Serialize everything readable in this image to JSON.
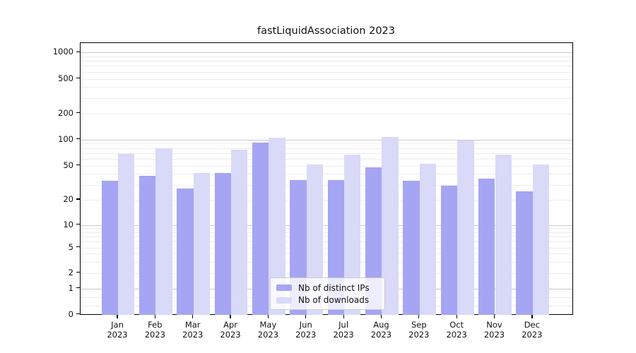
{
  "title": "fastLiquidAssociation 2023",
  "chart_data": {
    "type": "bar",
    "title": "fastLiquidAssociation 2023",
    "x_months": [
      "Jan",
      "Feb",
      "Mar",
      "Apr",
      "May",
      "Jun",
      "Jul",
      "Aug",
      "Sep",
      "Oct",
      "Nov",
      "Dec"
    ],
    "x_year": "2023",
    "categories": [
      "Jan 2023",
      "Feb 2023",
      "Mar 2023",
      "Apr 2023",
      "May 2023",
      "Jun 2023",
      "Jul 2023",
      "Aug 2023",
      "Sep 2023",
      "Oct 2023",
      "Nov 2023",
      "Dec 2023"
    ],
    "series": [
      {
        "name": "Nb of distinct IPs",
        "color": "#a5a5f3",
        "values": [
          33,
          38,
          27,
          41,
          93,
          34,
          34,
          48,
          33,
          29,
          35,
          25
        ]
      },
      {
        "name": "Nb of downloads",
        "color": "#d9d9f8",
        "values": [
          68,
          80,
          41,
          77,
          106,
          51,
          67,
          108,
          52,
          97,
          67,
          51
        ]
      }
    ],
    "yscale": "symlog",
    "y_ticks": [
      0,
      1,
      2,
      5,
      10,
      20,
      50,
      100,
      200,
      500,
      1000
    ],
    "ylim": [
      0,
      1150
    ],
    "xlabel": "",
    "ylabel": "",
    "grid": true,
    "legend_position": "bottom-center"
  },
  "colors": {
    "major_grid": "#c8c8c8",
    "minor_grid": "#ededed",
    "spine": "#000000",
    "legend_border": "#cccccc",
    "text": "#111111"
  }
}
